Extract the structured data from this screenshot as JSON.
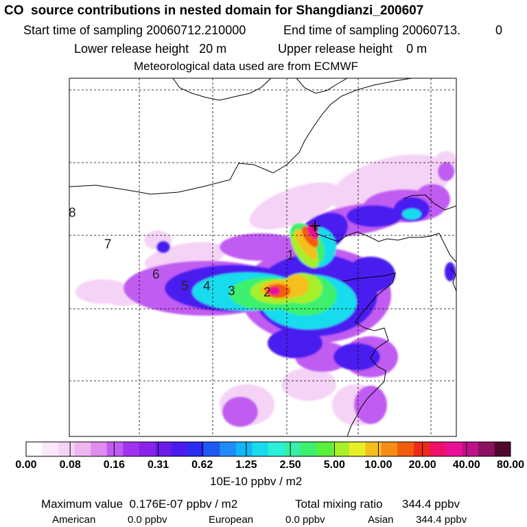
{
  "header": {
    "title": "CO  source contributions in nested domain for Shangdianzi_200607",
    "start_label": "Start time of sampling 20060712.210000",
    "end_label": "End time of sampling 20060713.",
    "end_suffix": "0",
    "lower_label": "Lower release height   20 m",
    "upper_label": "Upper release height    0 m",
    "met_label": "Meteorological data used are from ECMWF"
  },
  "colorbar": {
    "tick_labels": [
      "0.00",
      "0.08",
      "0.16",
      "0.31",
      "0.62",
      "1.25",
      "2.50",
      "5.00",
      "10.00",
      "20.00",
      "40.00",
      "80.00"
    ],
    "unit_label": "10E-10 ppbv / m2",
    "colors": [
      "#ffffff",
      "#fbe9fb",
      "#f5d3f6",
      "#edb6f1",
      "#e08cf0",
      "#c15cf2",
      "#a033ee",
      "#8a22ec",
      "#6a1be8",
      "#4a1bf0",
      "#2a2cf0",
      "#1e5af2",
      "#1e8cf5",
      "#10b6f5",
      "#18dcee",
      "#2bf0d8",
      "#35f0a6",
      "#3cf06e",
      "#58f03c",
      "#a6f02a",
      "#e6f024",
      "#f5c01e",
      "#f58c14",
      "#f25c10",
      "#f02a18",
      "#f0106a",
      "#e81098",
      "#c01088",
      "#8a1060",
      "#50082e"
    ]
  },
  "summary": {
    "max_label": "Maximum value  0.176E-07 ppbv / m2",
    "total_label": "Total mixing ratio      344.4 ppbv",
    "american_label": "American",
    "american_value": "0.0 ppbv",
    "european_label": "European",
    "european_value": "0.0 ppbv",
    "asian_label": "Asian",
    "asian_value": "344.4 ppbv"
  },
  "chart_data": {
    "type": "heatmap",
    "title": "CO  source contributions in nested domain for Shangdianzi_200607",
    "legend_unit": "10E-10 ppbv / m2",
    "color_scale_levels": [
      0.0,
      0.08,
      0.16,
      0.31,
      0.62,
      1.25,
      2.5,
      5.0,
      10.0,
      20.0,
      40.0,
      80.0
    ],
    "trajectory_day_labels": [
      "1",
      "2",
      "3",
      "4",
      "5",
      "6",
      "7",
      "8"
    ],
    "receptor_marker": "+",
    "maximum_value": "0.176E-07 ppbv / m2",
    "total_mixing_ratio": "344.4 ppbv",
    "contributions": {
      "American": "0.0 ppbv",
      "European": "0.0 ppbv",
      "Asian": "344.4 ppbv"
    }
  }
}
